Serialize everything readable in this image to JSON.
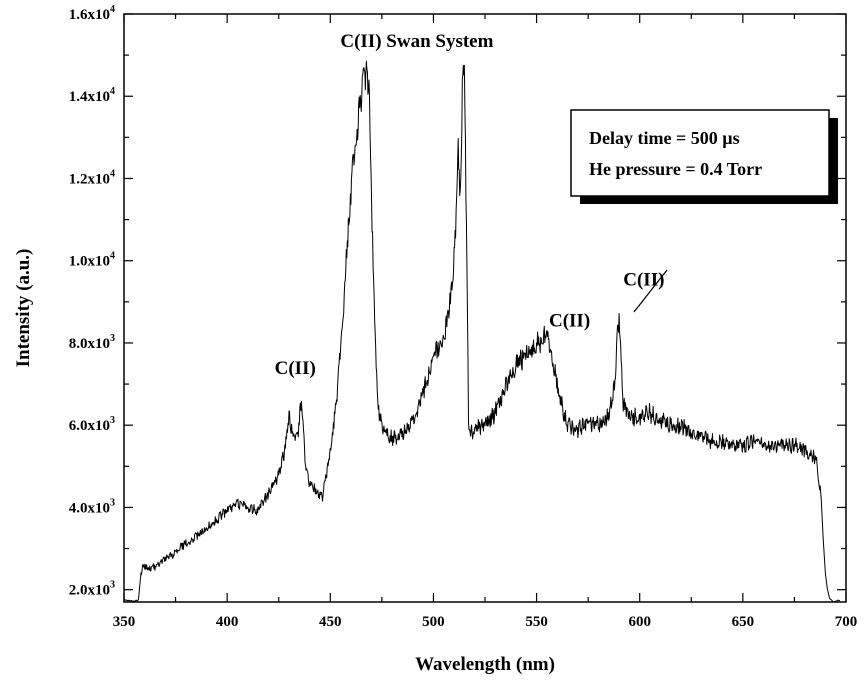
{
  "chart_data": {
    "type": "line",
    "xlabel": "Wavelength (nm)",
    "ylabel": "Intensity (a.u.)",
    "xlim": [
      350,
      700
    ],
    "ylim": [
      1700,
      16000
    ],
    "x_ticks": [
      350,
      400,
      450,
      500,
      550,
      600,
      650,
      700
    ],
    "x_tick_labels": [
      "350",
      "400",
      "450",
      "500",
      "550",
      "600",
      "650",
      "700"
    ],
    "y_ticks": [
      2000,
      4000,
      6000,
      8000,
      10000,
      12000,
      14000,
      16000
    ],
    "y_tick_mantissa": [
      "2.0x10",
      "4.0x10",
      "6.0x10",
      "8.0x10",
      "1.0x10",
      "1.2x10",
      "1.4x10",
      "1.6x10"
    ],
    "y_tick_exponent": [
      "3",
      "3",
      "3",
      "3",
      "4",
      "4",
      "4",
      "4"
    ],
    "grid": false,
    "annotations": [
      {
        "text": "C(II)",
        "x": 433,
        "y": 7250
      },
      {
        "text": "C(II) Swan System",
        "x": 492,
        "y": 15200
      },
      {
        "text": "C(II)",
        "x": 566,
        "y": 8400
      },
      {
        "text": "C(II)",
        "x": 602,
        "y": 9400
      }
    ],
    "legend_lines": [
      "Delay time = 500 µs",
      "He pressure = 0.4 Torr"
    ],
    "legend_position": "top-right",
    "series": [
      {
        "color": "#000000",
        "x": [
          350,
          355,
          357,
          358,
          359,
          362,
          365,
          370,
          375,
          380,
          385,
          390,
          395,
          400,
          405,
          410,
          415,
          420,
          425,
          428,
          430,
          432,
          434,
          436,
          438,
          440,
          443,
          446,
          450,
          453,
          456,
          459,
          462,
          465,
          467,
          468,
          469,
          470,
          471,
          472,
          473,
          475,
          477,
          480,
          485,
          490,
          495,
          500,
          505,
          508,
          510,
          511,
          512,
          513,
          514,
          515,
          516,
          517,
          518,
          520,
          525,
          530,
          535,
          540,
          545,
          550,
          552,
          555,
          558,
          560,
          562,
          565,
          568,
          570,
          575,
          580,
          585,
          588,
          589,
          590,
          591,
          592,
          595,
          600,
          605,
          610,
          615,
          620,
          625,
          630,
          635,
          640,
          645,
          650,
          655,
          660,
          665,
          670,
          675,
          680,
          685,
          686,
          688,
          689,
          690,
          691,
          692,
          694,
          697
        ],
        "y": [
          1750,
          1720,
          1750,
          2300,
          2600,
          2500,
          2550,
          2750,
          2900,
          3150,
          3300,
          3500,
          3700,
          3950,
          4100,
          4000,
          3950,
          4300,
          4800,
          5400,
          6200,
          5800,
          5700,
          6600,
          5000,
          4600,
          4400,
          4200,
          5400,
          6600,
          8600,
          11000,
          12800,
          13900,
          14600,
          14700,
          13800,
          11500,
          9300,
          7800,
          6500,
          6000,
          5800,
          5700,
          5800,
          6100,
          6800,
          7600,
          8200,
          8900,
          10000,
          11200,
          13000,
          11400,
          14200,
          14700,
          11000,
          6200,
          5800,
          5900,
          6000,
          6300,
          6900,
          7500,
          7700,
          8000,
          7900,
          8300,
          7500,
          7000,
          6500,
          6000,
          5900,
          5900,
          6100,
          6000,
          6200,
          7000,
          8000,
          8600,
          7500,
          6500,
          6200,
          6200,
          6300,
          6100,
          6000,
          6000,
          5800,
          5700,
          5600,
          5600,
          5500,
          5500,
          5600,
          5500,
          5500,
          5500,
          5500,
          5400,
          5200,
          5000,
          4200,
          3200,
          2400,
          2000,
          1800,
          1700,
          1750
        ]
      }
    ]
  }
}
